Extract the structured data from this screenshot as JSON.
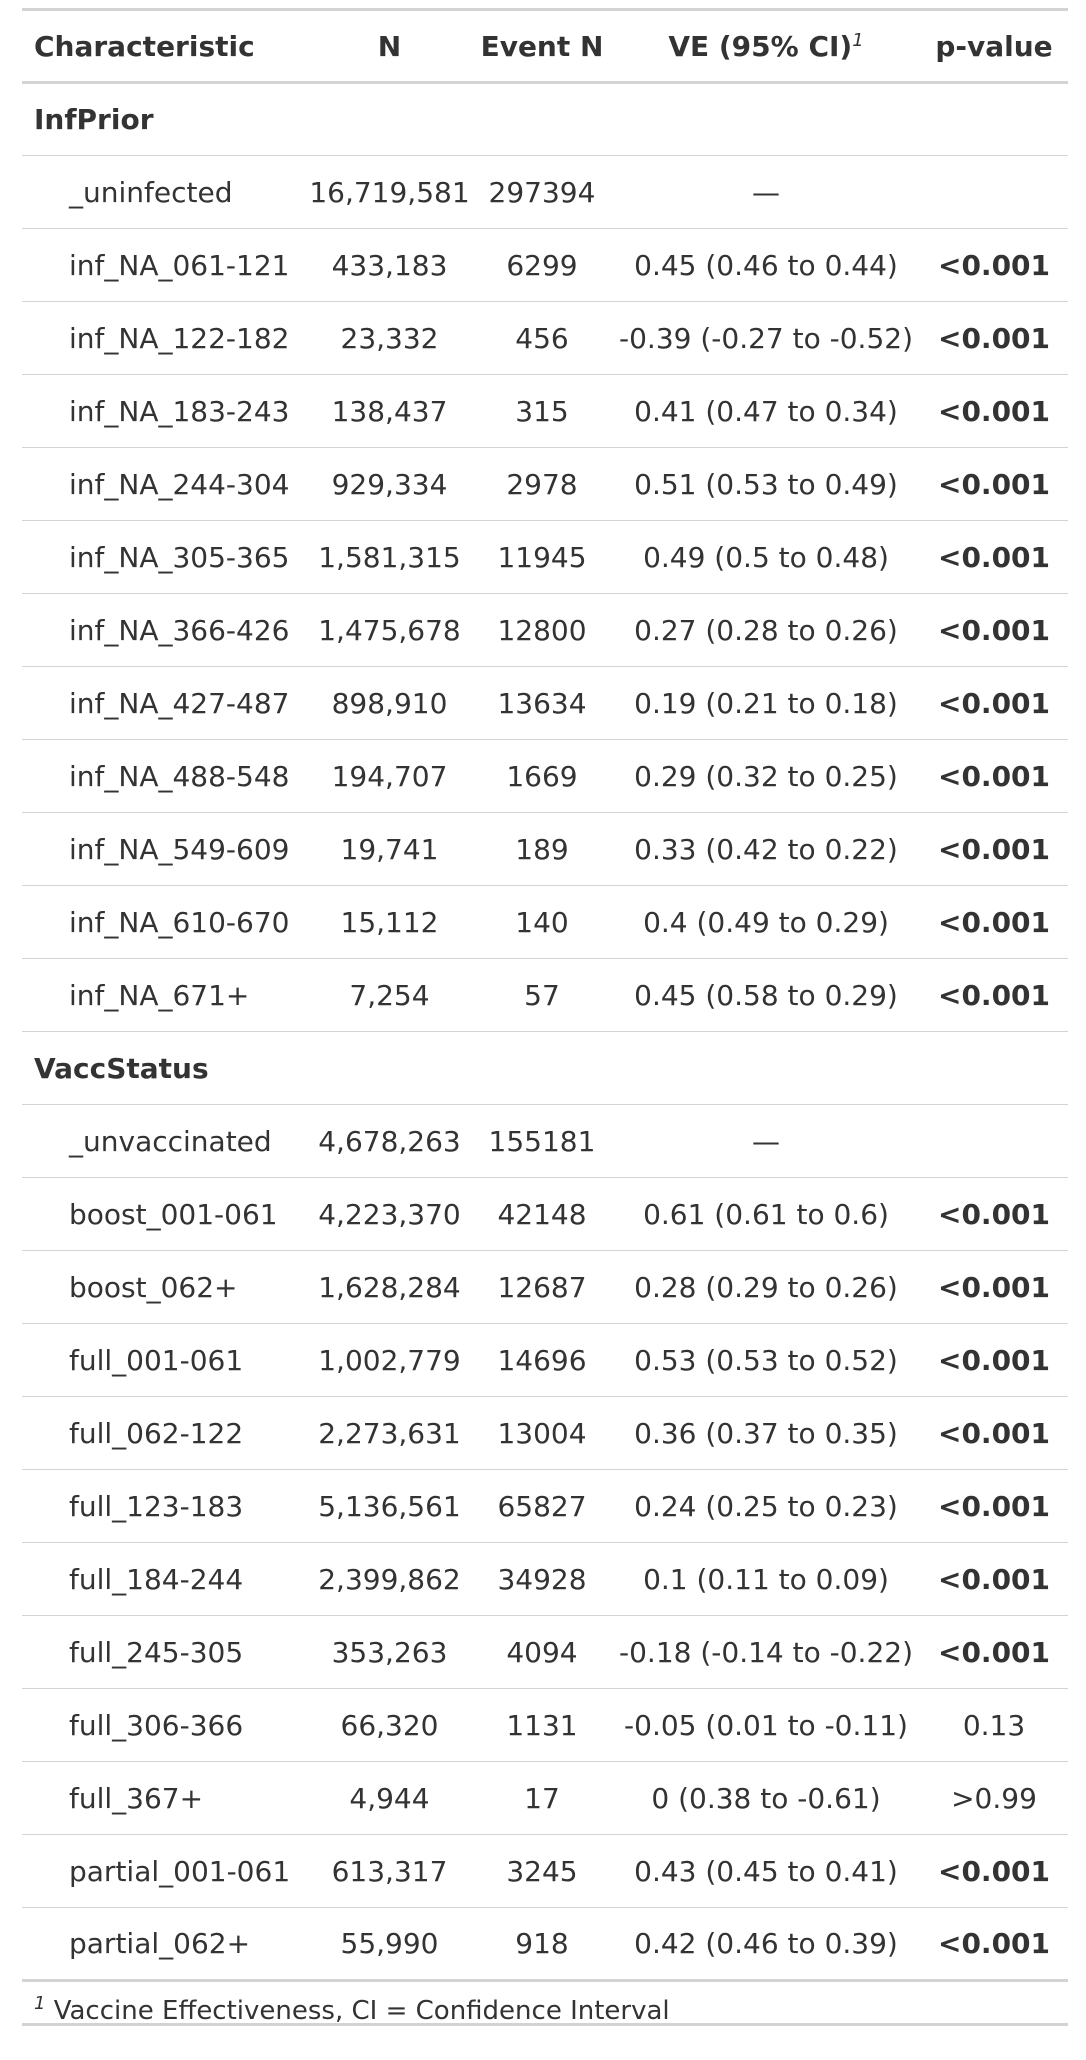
{
  "header": {
    "characteristic": "Characteristic",
    "n": "N",
    "event_n": "Event N",
    "ve": "VE (95% CI)",
    "ve_footnote_mark": "1",
    "p_value": "p-value"
  },
  "groups": [
    {
      "label": "InfPrior",
      "rows": [
        {
          "name": "_uninfected",
          "n": "16,719,581",
          "event_n": "297394",
          "ve": "—",
          "p": "",
          "p_bold": false
        },
        {
          "name": "inf_NA_061-121",
          "n": "433,183",
          "event_n": "6299",
          "ve": "0.45 (0.46 to 0.44)",
          "p": "<0.001",
          "p_bold": true
        },
        {
          "name": "inf_NA_122-182",
          "n": "23,332",
          "event_n": "456",
          "ve": "-0.39 (-0.27 to -0.52)",
          "p": "<0.001",
          "p_bold": true
        },
        {
          "name": "inf_NA_183-243",
          "n": "138,437",
          "event_n": "315",
          "ve": "0.41 (0.47 to 0.34)",
          "p": "<0.001",
          "p_bold": true
        },
        {
          "name": "inf_NA_244-304",
          "n": "929,334",
          "event_n": "2978",
          "ve": "0.51 (0.53 to 0.49)",
          "p": "<0.001",
          "p_bold": true
        },
        {
          "name": "inf_NA_305-365",
          "n": "1,581,315",
          "event_n": "11945",
          "ve": "0.49 (0.5 to 0.48)",
          "p": "<0.001",
          "p_bold": true
        },
        {
          "name": "inf_NA_366-426",
          "n": "1,475,678",
          "event_n": "12800",
          "ve": "0.27 (0.28 to 0.26)",
          "p": "<0.001",
          "p_bold": true
        },
        {
          "name": "inf_NA_427-487",
          "n": "898,910",
          "event_n": "13634",
          "ve": "0.19 (0.21 to 0.18)",
          "p": "<0.001",
          "p_bold": true
        },
        {
          "name": "inf_NA_488-548",
          "n": "194,707",
          "event_n": "1669",
          "ve": "0.29 (0.32 to 0.25)",
          "p": "<0.001",
          "p_bold": true
        },
        {
          "name": "inf_NA_549-609",
          "n": "19,741",
          "event_n": "189",
          "ve": "0.33 (0.42 to 0.22)",
          "p": "<0.001",
          "p_bold": true
        },
        {
          "name": "inf_NA_610-670",
          "n": "15,112",
          "event_n": "140",
          "ve": "0.4 (0.49 to 0.29)",
          "p": "<0.001",
          "p_bold": true
        },
        {
          "name": "inf_NA_671+",
          "n": "7,254",
          "event_n": "57",
          "ve": "0.45 (0.58 to 0.29)",
          "p": "<0.001",
          "p_bold": true
        }
      ]
    },
    {
      "label": "VaccStatus",
      "rows": [
        {
          "name": "_unvaccinated",
          "n": "4,678,263",
          "event_n": "155181",
          "ve": "—",
          "p": "",
          "p_bold": false
        },
        {
          "name": "boost_001-061",
          "n": "4,223,370",
          "event_n": "42148",
          "ve": "0.61 (0.61 to 0.6)",
          "p": "<0.001",
          "p_bold": true
        },
        {
          "name": "boost_062+",
          "n": "1,628,284",
          "event_n": "12687",
          "ve": "0.28 (0.29 to 0.26)",
          "p": "<0.001",
          "p_bold": true
        },
        {
          "name": "full_001-061",
          "n": "1,002,779",
          "event_n": "14696",
          "ve": "0.53 (0.53 to 0.52)",
          "p": "<0.001",
          "p_bold": true
        },
        {
          "name": "full_062-122",
          "n": "2,273,631",
          "event_n": "13004",
          "ve": "0.36 (0.37 to 0.35)",
          "p": "<0.001",
          "p_bold": true
        },
        {
          "name": "full_123-183",
          "n": "5,136,561",
          "event_n": "65827",
          "ve": "0.24 (0.25 to 0.23)",
          "p": "<0.001",
          "p_bold": true
        },
        {
          "name": "full_184-244",
          "n": "2,399,862",
          "event_n": "34928",
          "ve": "0.1 (0.11 to 0.09)",
          "p": "<0.001",
          "p_bold": true
        },
        {
          "name": "full_245-305",
          "n": "353,263",
          "event_n": "4094",
          "ve": "-0.18 (-0.14 to -0.22)",
          "p": "<0.001",
          "p_bold": true
        },
        {
          "name": "full_306-366",
          "n": "66,320",
          "event_n": "1131",
          "ve": "-0.05 (0.01 to -0.11)",
          "p": "0.13",
          "p_bold": false
        },
        {
          "name": "full_367+",
          "n": "4,944",
          "event_n": "17",
          "ve": "0 (0.38 to -0.61)",
          "p": ">0.99",
          "p_bold": false
        },
        {
          "name": "partial_001-061",
          "n": "613,317",
          "event_n": "3245",
          "ve": "0.43 (0.45 to 0.41)",
          "p": "<0.001",
          "p_bold": true
        },
        {
          "name": "partial_062+",
          "n": "55,990",
          "event_n": "918",
          "ve": "0.42 (0.46 to 0.39)",
          "p": "<0.001",
          "p_bold": true
        }
      ]
    }
  ],
  "footnote": {
    "mark": "1",
    "text": "Vaccine Effectiveness, CI = Confidence Interval"
  }
}
